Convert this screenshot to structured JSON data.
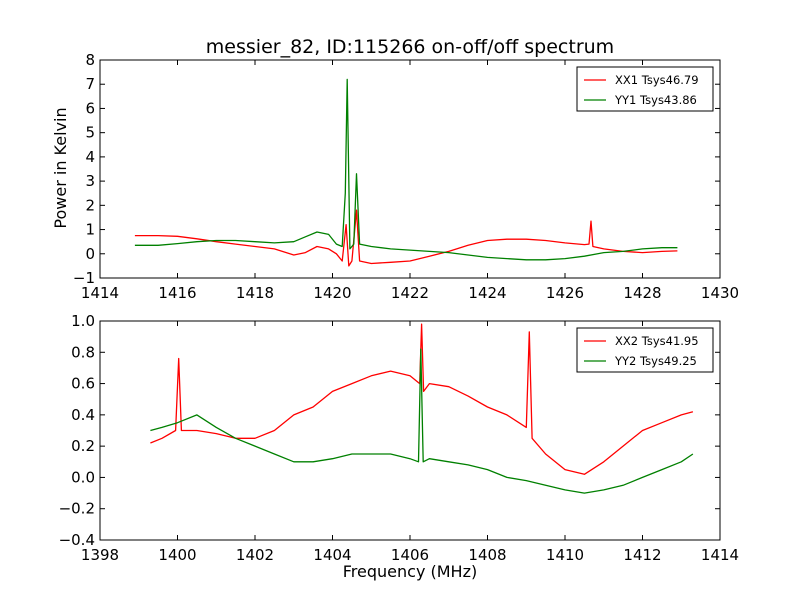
{
  "title": "messier_82, ID:115266 on-off/off spectrum",
  "chart_data": [
    {
      "type": "line",
      "title": "messier_82, ID:115266 on-off/off spectrum",
      "xlabel": "",
      "ylabel": "Power in Kelvin",
      "xlim": [
        1414,
        1430
      ],
      "ylim": [
        -1,
        8
      ],
      "xticks": [
        "1414",
        "1416",
        "1418",
        "1420",
        "1422",
        "1424",
        "1426",
        "1428",
        "1430"
      ],
      "yticks": [
        "−1",
        "0",
        "1",
        "2",
        "3",
        "4",
        "5",
        "6",
        "7",
        "8"
      ],
      "grid": false,
      "legend": "top-right",
      "series": [
        {
          "name": "XX1 Tsys46.79",
          "color": "#ff0000",
          "x": [
            1414.9,
            1415.5,
            1416.0,
            1416.5,
            1417.0,
            1417.5,
            1418.0,
            1418.5,
            1419.0,
            1419.3,
            1419.6,
            1419.9,
            1420.1,
            1420.25,
            1420.35,
            1420.42,
            1420.5,
            1420.62,
            1420.7,
            1421.0,
            1421.5,
            1422.0,
            1422.5,
            1423.0,
            1423.5,
            1424.0,
            1424.5,
            1425.0,
            1425.5,
            1426.0,
            1426.5,
            1426.62,
            1426.67,
            1426.72,
            1427.0,
            1427.5,
            1428.0,
            1428.5,
            1428.9
          ],
          "values": [
            0.75,
            0.75,
            0.72,
            0.62,
            0.5,
            0.4,
            0.3,
            0.2,
            -0.05,
            0.05,
            0.3,
            0.2,
            0.0,
            -0.3,
            1.2,
            -0.5,
            -0.3,
            1.8,
            -0.3,
            -0.4,
            -0.35,
            -0.3,
            -0.1,
            0.1,
            0.35,
            0.55,
            0.6,
            0.6,
            0.55,
            0.45,
            0.38,
            0.4,
            1.35,
            0.3,
            0.2,
            0.1,
            0.05,
            0.1,
            0.12
          ]
        },
        {
          "name": "YY1 Tsys43.86",
          "color": "#008000",
          "x": [
            1414.9,
            1415.5,
            1416.0,
            1416.5,
            1417.0,
            1417.5,
            1418.0,
            1418.5,
            1419.0,
            1419.3,
            1419.6,
            1419.9,
            1420.1,
            1420.25,
            1420.33,
            1420.38,
            1420.45,
            1420.55,
            1420.62,
            1420.7,
            1421.0,
            1421.5,
            1422.0,
            1422.5,
            1423.0,
            1423.5,
            1424.0,
            1424.5,
            1425.0,
            1425.5,
            1426.0,
            1426.5,
            1427.0,
            1427.5,
            1428.0,
            1428.5,
            1428.9
          ],
          "values": [
            0.35,
            0.35,
            0.42,
            0.5,
            0.55,
            0.55,
            0.5,
            0.45,
            0.5,
            0.7,
            0.9,
            0.8,
            0.4,
            0.3,
            2.5,
            7.2,
            0.2,
            0.4,
            3.3,
            0.4,
            0.3,
            0.2,
            0.15,
            0.1,
            0.05,
            -0.05,
            -0.15,
            -0.2,
            -0.25,
            -0.25,
            -0.2,
            -0.1,
            0.05,
            0.1,
            0.2,
            0.25,
            0.25
          ]
        }
      ]
    },
    {
      "type": "line",
      "title": "",
      "xlabel": "Frequency (MHz)",
      "ylabel": "",
      "xlim": [
        1398,
        1414
      ],
      "ylim": [
        -0.4,
        1.0
      ],
      "xticks": [
        "1398",
        "1400",
        "1402",
        "1404",
        "1406",
        "1408",
        "1410",
        "1412",
        "1414"
      ],
      "yticks": [
        "−0.4",
        "−0.2",
        "0.0",
        "0.2",
        "0.4",
        "0.6",
        "0.8",
        "1.0"
      ],
      "grid": false,
      "legend": "top-right",
      "series": [
        {
          "name": "XX2 Tsys41.95",
          "color": "#ff0000",
          "x": [
            1399.3,
            1399.6,
            1399.95,
            1400.03,
            1400.1,
            1400.5,
            1401.0,
            1401.5,
            1402.0,
            1402.5,
            1403.0,
            1403.5,
            1404.0,
            1404.5,
            1405.0,
            1405.5,
            1406.0,
            1406.25,
            1406.3,
            1406.35,
            1406.5,
            1407.0,
            1407.5,
            1408.0,
            1408.5,
            1409.0,
            1409.08,
            1409.15,
            1409.5,
            1410.0,
            1410.5,
            1411.0,
            1411.5,
            1412.0,
            1412.5,
            1413.0,
            1413.3
          ],
          "values": [
            0.22,
            0.25,
            0.3,
            0.76,
            0.3,
            0.3,
            0.28,
            0.25,
            0.25,
            0.3,
            0.4,
            0.45,
            0.55,
            0.6,
            0.65,
            0.68,
            0.65,
            0.6,
            0.98,
            0.55,
            0.6,
            0.58,
            0.52,
            0.45,
            0.4,
            0.32,
            0.93,
            0.25,
            0.15,
            0.05,
            0.02,
            0.1,
            0.2,
            0.3,
            0.35,
            0.4,
            0.42
          ]
        },
        {
          "name": "YY2 Tsys49.25",
          "color": "#008000",
          "x": [
            1399.3,
            1399.6,
            1400.0,
            1400.5,
            1401.0,
            1401.5,
            1402.0,
            1402.5,
            1403.0,
            1403.5,
            1404.0,
            1404.5,
            1405.0,
            1405.5,
            1406.0,
            1406.22,
            1406.28,
            1406.34,
            1406.5,
            1407.0,
            1407.5,
            1408.0,
            1408.5,
            1409.0,
            1409.5,
            1410.0,
            1410.5,
            1411.0,
            1411.5,
            1412.0,
            1412.5,
            1413.0,
            1413.3
          ],
          "values": [
            0.3,
            0.32,
            0.35,
            0.4,
            0.32,
            0.25,
            0.2,
            0.15,
            0.1,
            0.1,
            0.12,
            0.15,
            0.15,
            0.15,
            0.12,
            0.1,
            0.82,
            0.1,
            0.12,
            0.1,
            0.08,
            0.05,
            0.0,
            -0.02,
            -0.05,
            -0.08,
            -0.1,
            -0.08,
            -0.05,
            0.0,
            0.05,
            0.1,
            0.15
          ]
        }
      ]
    }
  ]
}
